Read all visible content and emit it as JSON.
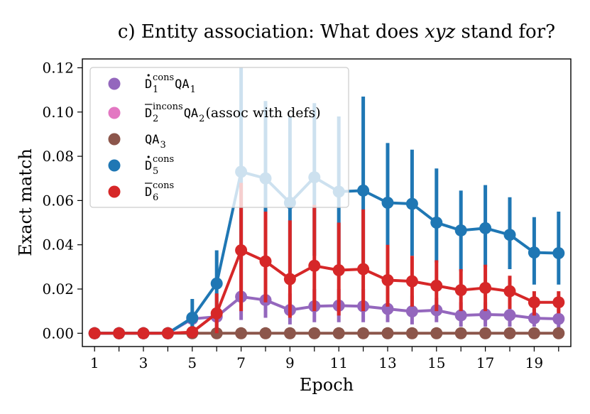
{
  "chart_data": {
    "type": "line",
    "title": "c) Entity association: What does xyz stand for?",
    "title_prefix": "c) Entity association: What does ",
    "title_var": "xyz",
    "title_suffix": " stand for?",
    "xlabel": "Epoch",
    "ylabel": "Exact match",
    "xlim": [
      0.5,
      20.5
    ],
    "ylim": [
      -0.006,
      0.124
    ],
    "xticks": [
      "1",
      "3",
      "5",
      "7",
      "9",
      "11",
      "13",
      "15",
      "17",
      "19"
    ],
    "yticks": [
      "0.00",
      "0.02",
      "0.04",
      "0.06",
      "0.08",
      "0.10",
      "0.12"
    ],
    "grid": false,
    "legend_position": "top-left",
    "x": [
      1,
      2,
      3,
      4,
      5,
      6,
      7,
      8,
      9,
      10,
      11,
      12,
      13,
      14,
      15,
      16,
      17,
      18,
      19,
      20
    ],
    "series": [
      {
        "key": "d1_cons_qa1",
        "legend": {
          "base": "D",
          "accent": "dot",
          "sup": "cons",
          "sub": "1",
          "tail": "QA",
          "tail_sub": "1",
          "note": ""
        },
        "color": "#9467bd",
        "values": [
          0,
          0,
          0,
          0,
          0.0065,
          0.0075,
          0.0165,
          0.015,
          0.0105,
          0.0122,
          0.0125,
          0.0122,
          0.011,
          0.0099,
          0.0104,
          0.0081,
          0.0085,
          0.0082,
          0.0068,
          0.0065
        ],
        "err_low": [
          0,
          0,
          0,
          0,
          0,
          0,
          0.006,
          0.007,
          0.004,
          0.005,
          0.005,
          0.005,
          0.005,
          0.004,
          0.005,
          0.003,
          0.003,
          0.003,
          0.003,
          0.002
        ],
        "err_high": [
          0,
          0,
          0,
          0,
          0.01,
          0.012,
          0.03,
          0.025,
          0.018,
          0.02,
          0.02,
          0.02,
          0.018,
          0.017,
          0.016,
          0.014,
          0.014,
          0.014,
          0.011,
          0.011
        ]
      },
      {
        "key": "d2_incons_qa2",
        "legend": {
          "base": "D",
          "accent": "bar",
          "sup": "incons",
          "sub": "2",
          "tail": "QA",
          "tail_sub": "2",
          "note": " (assoc with defs)"
        },
        "color": "#e377c2",
        "values": null
      },
      {
        "key": "qa3",
        "legend": {
          "base": "",
          "accent": "",
          "sup": "",
          "sub": "",
          "tail": "QA",
          "tail_sub": "3",
          "note": ""
        },
        "color": "#8c564b",
        "values": [
          0,
          0,
          0,
          0,
          0,
          0,
          0,
          0,
          0,
          0,
          0,
          0,
          0,
          0,
          0,
          0,
          0,
          0,
          0,
          0
        ]
      },
      {
        "key": "d5_cons",
        "legend": {
          "base": "D",
          "accent": "dot",
          "sup": "cons",
          "sub": "5",
          "tail": "",
          "tail_sub": "",
          "note": ""
        },
        "color": "#1f77b4",
        "values": [
          0,
          0,
          0,
          0,
          0.007,
          0.0225,
          0.073,
          0.07,
          0.059,
          0.0705,
          0.064,
          0.0645,
          0.059,
          0.0585,
          0.05,
          0.0465,
          0.0475,
          0.0445,
          0.0365,
          0.0362
        ],
        "err_low": [
          0,
          0,
          0,
          0,
          0,
          0.008,
          0.03,
          0.035,
          0.025,
          0.035,
          0.03,
          0.03,
          0.03,
          0.035,
          0.032,
          0.028,
          0.03,
          0.029,
          0.022,
          0.022
        ],
        "err_high": [
          0,
          0,
          0,
          0,
          0.0155,
          0.0375,
          0.12,
          0.105,
          0.098,
          0.104,
          0.098,
          0.107,
          0.086,
          0.083,
          0.0745,
          0.0645,
          0.067,
          0.0615,
          0.0525,
          0.055
        ]
      },
      {
        "key": "d6_cons",
        "legend": {
          "base": "D",
          "accent": "bar",
          "sup": "cons",
          "sub": "6",
          "tail": "",
          "tail_sub": "",
          "note": ""
        },
        "color": "#d62728",
        "values": [
          0,
          0,
          0,
          0,
          0.0005,
          0.009,
          0.0375,
          0.0325,
          0.0245,
          0.0305,
          0.0285,
          0.029,
          0.024,
          0.0235,
          0.0215,
          0.0195,
          0.0205,
          0.019,
          0.014,
          0.014
        ],
        "err_low": [
          0,
          0,
          0,
          0,
          0,
          0,
          0.01,
          0.014,
          0.007,
          0.01,
          0.008,
          0.01,
          0.012,
          0.012,
          0.01,
          0.01,
          0.01,
          0.011,
          0.008,
          0.009
        ],
        "err_high": [
          0,
          0,
          0,
          0,
          0.0015,
          0.018,
          0.068,
          0.055,
          0.051,
          0.058,
          0.05,
          0.056,
          0.04,
          0.035,
          0.033,
          0.029,
          0.031,
          0.026,
          0.019,
          0.019
        ]
      }
    ]
  }
}
